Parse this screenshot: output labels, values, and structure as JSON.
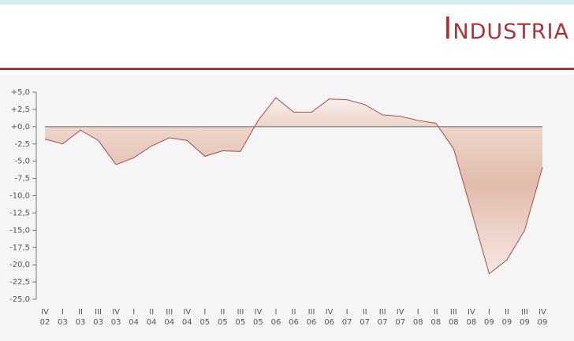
{
  "chart_data": {
    "type": "line",
    "title": "Industria",
    "categories": [
      "IV\n02",
      "I\n03",
      "II\n03",
      "III\n03",
      "IV\n03",
      "I\n04",
      "II\n04",
      "III\n04",
      "IV\n04",
      "I\n05",
      "II\n05",
      "III\n05",
      "IV\n05",
      "I\n06",
      "II\n06",
      "III\n06",
      "IV\n06",
      "I\n07",
      "II\n07",
      "III\n07",
      "IV\n07",
      "I\n08",
      "II\n08",
      "III\n08",
      "IV\n08",
      "I\n09",
      "II\n09",
      "III\n09",
      "IV\n09"
    ],
    "series": [
      {
        "color": "#a94a4a",
        "values": [
          -1.8,
          -2.5,
          -0.5,
          -2.0,
          -5.5,
          -4.5,
          -2.8,
          -1.6,
          -2.0,
          -4.3,
          -3.5,
          -3.6,
          0.9,
          4.2,
          2.1,
          2.1,
          4.0,
          3.9,
          3.2,
          1.7,
          1.5,
          0.9,
          0.5,
          -3.2,
          -12.2,
          -21.3,
          -19.3,
          -15.0,
          -5.9
        ]
      }
    ],
    "ylim": [
      -25,
      5
    ],
    "yticks": [
      {
        "value": 5,
        "label": "+5,0"
      },
      {
        "value": 2.5,
        "label": "+2,5"
      },
      {
        "value": 0,
        "label": "+0,0"
      },
      {
        "value": -2.5,
        "label": "-2,5"
      },
      {
        "value": -5,
        "label": "-5,0"
      },
      {
        "value": -7.5,
        "label": "-7,5"
      },
      {
        "value": -10,
        "label": "-10,0"
      },
      {
        "value": -12.5,
        "label": "-12,5"
      },
      {
        "value": -15,
        "label": "-15,0"
      },
      {
        "value": -17.5,
        "label": "-17,5"
      },
      {
        "value": -20,
        "label": "-20,0"
      },
      {
        "value": -22.5,
        "label": "-22,5"
      },
      {
        "value": -25,
        "label": "-25,0"
      }
    ]
  }
}
